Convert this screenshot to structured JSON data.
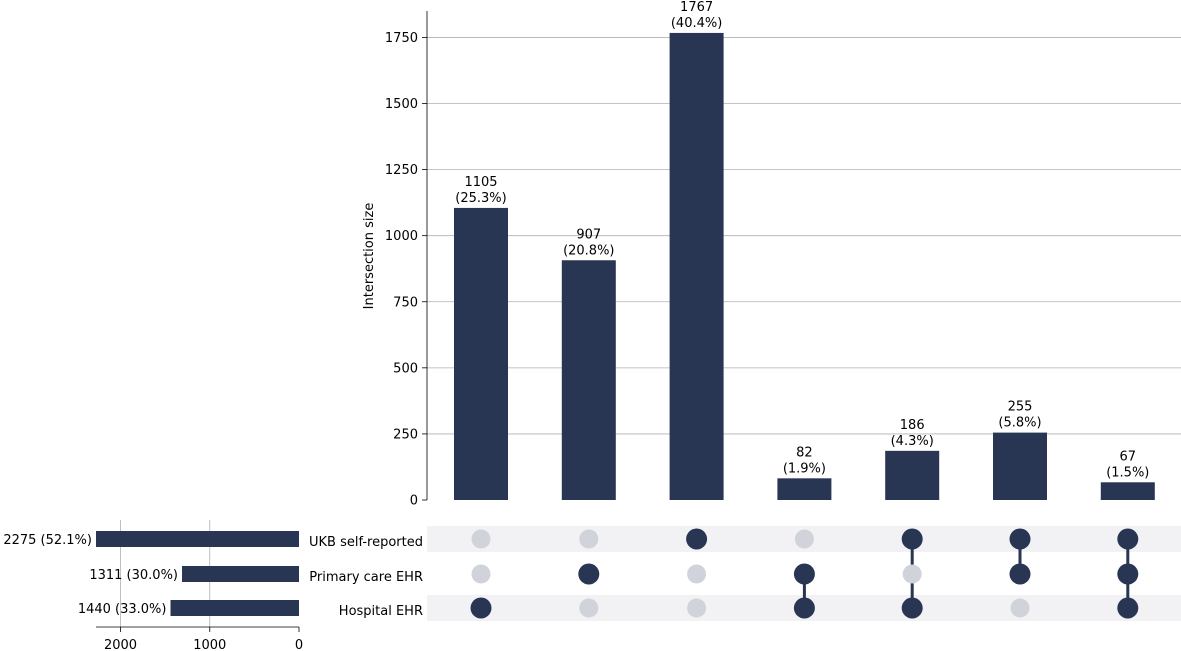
{
  "chart_data": {
    "type": "upset",
    "bar_color": "#283653",
    "inactive_dot_color": "#d0d3da",
    "shade_color": "#f2f2f5",
    "grid_color": "#b0b0b0",
    "intersections": {
      "ylabel": "Intersection size",
      "ylim": [
        0,
        1850
      ],
      "yticks": [
        0,
        250,
        500,
        750,
        1000,
        1250,
        1500,
        1750
      ],
      "values": [
        1105,
        907,
        1767,
        82,
        186,
        255,
        67
      ],
      "labels": [
        [
          "1105",
          "(25.3%)"
        ],
        [
          "907",
          "(20.8%)"
        ],
        [
          "1767",
          "(40.4%)"
        ],
        [
          "82",
          "(1.9%)"
        ],
        [
          "186",
          "(4.3%)"
        ],
        [
          "255",
          "(5.8%)"
        ],
        [
          "67",
          "(1.5%)"
        ]
      ],
      "membership": [
        [
          false,
          false,
          true
        ],
        [
          false,
          true,
          false
        ],
        [
          true,
          false,
          false
        ],
        [
          false,
          true,
          true
        ],
        [
          true,
          false,
          true
        ],
        [
          true,
          true,
          false
        ],
        [
          true,
          true,
          true
        ]
      ]
    },
    "sets": {
      "names": [
        "UKB self-reported",
        "Primary care EHR",
        "Hospital EHR"
      ],
      "values": [
        2275,
        1311,
        1440
      ],
      "labels": [
        "2275 (52.1%)",
        "1311 (30.0%)",
        "1440 (33.0%)"
      ],
      "xlim": [
        0,
        2275
      ],
      "xticks": [
        2000,
        1000,
        0
      ]
    }
  }
}
